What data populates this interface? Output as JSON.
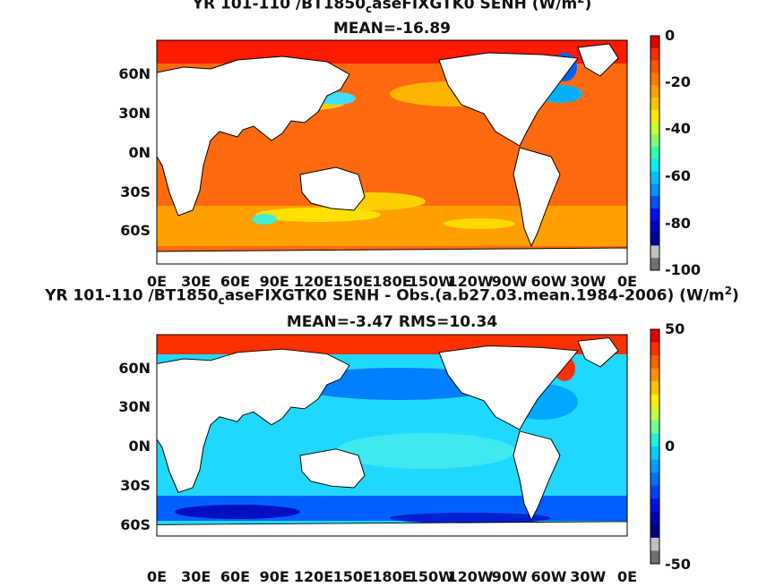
{
  "panel_top": {
    "title_pre": "YR 101-110 /BT1850",
    "title_sub": "c",
    "title_mid": "aseFIXGTK0 SENH (W/m",
    "title_sup": "2",
    "title_post": ")",
    "subtitle": "MEAN=-16.89",
    "colorbar": {
      "max": 0,
      "ticks": [
        "0",
        "-20",
        "-40",
        "-60",
        "-80",
        "-100"
      ],
      "colors": [
        "#e00000",
        "#ff2a00",
        "#ff5500",
        "#ff7a00",
        "#ffa000",
        "#ffc400",
        "#ffe800",
        "#c8ff30",
        "#80ff70",
        "#30ffb0",
        "#00f0f0",
        "#00c0ff",
        "#0090ff",
        "#0050ff",
        "#0010f0",
        "#0000c0",
        "#000090",
        "#c0c0c0",
        "#707070"
      ]
    }
  },
  "panel_bottom": {
    "title_pre": "YR 101-110 /BT1850",
    "title_sub": "c",
    "title_mid": "aseFIXGTK0 SENH - Obs.(a.b27.03.mean.1984-2006) (W/m",
    "title_sup": "2",
    "title_post": ")",
    "subtitle": "MEAN=-3.47 RMS=10.34",
    "colorbar": {
      "ticks": [
        "50",
        "0",
        "-50"
      ],
      "colors": [
        "#e00000",
        "#ff3000",
        "#ff6000",
        "#ff9000",
        "#ffc000",
        "#ffee00",
        "#c0ff40",
        "#70ff90",
        "#20f0e0",
        "#00d0ff",
        "#00a0ff",
        "#0070ff",
        "#0040ff",
        "#0010e0",
        "#0000b0",
        "#000080",
        "#c0c0c0",
        "#707070"
      ]
    }
  },
  "map": {
    "lat_labels": [
      "60N",
      "30N",
      "0N",
      "30S",
      "60S"
    ],
    "lon_labels": [
      "0E",
      "30E",
      "60E",
      "90E",
      "120E",
      "150E",
      "180E",
      "150W",
      "120W",
      "90W",
      "60W",
      "30W",
      "0E"
    ]
  }
}
